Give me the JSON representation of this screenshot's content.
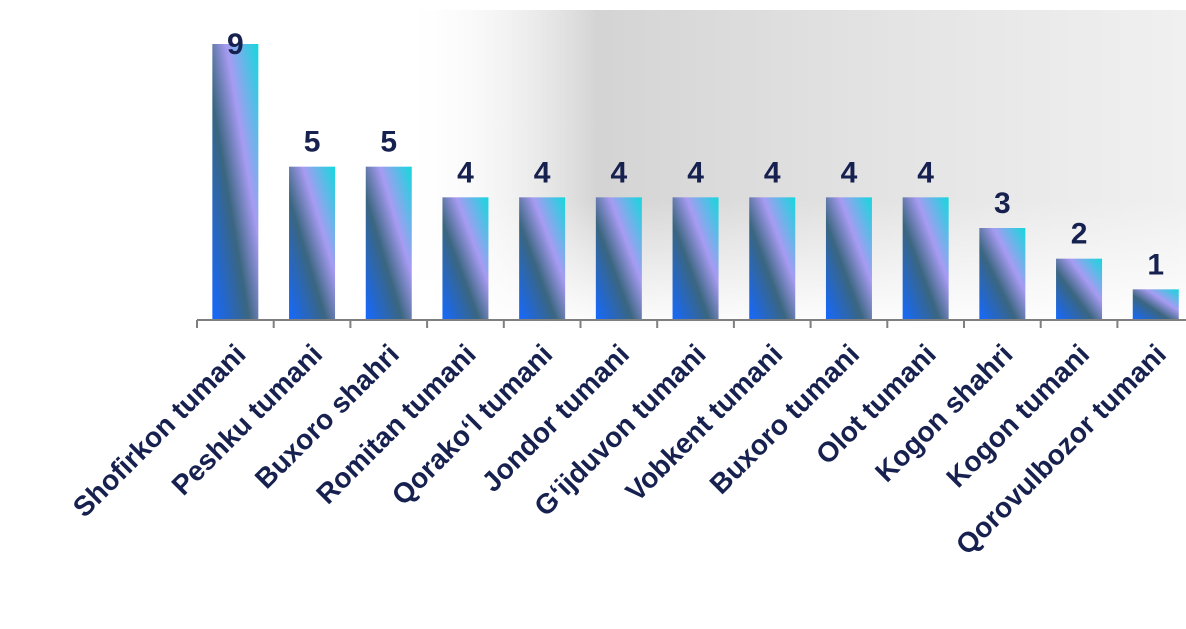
{
  "chart_data": {
    "type": "bar",
    "categories": [
      "Shofirkon tumani",
      "Peshku tumani",
      "Buxoro shahri",
      "Romitan tumani",
      "Qorako‘l tumani",
      "Jondor tumani",
      "G‘ijduvon tumani",
      "Vobkent tumani",
      "Buxoro tumani",
      "Olot tumani",
      "Kogon shahri",
      "Kogon tumani",
      "Qorovulbozor tumani"
    ],
    "values": [
      9,
      5,
      5,
      4,
      4,
      4,
      4,
      4,
      4,
      4,
      3,
      2,
      1
    ],
    "ylim": [
      0,
      9
    ],
    "grid": false,
    "legend": "none",
    "colors": {
      "bar_top": "#14d8dd",
      "bar_mid": "#a79bf2",
      "bar_dark": "#3a6680",
      "bar_bottom": "#1568ff",
      "label": "#17214f",
      "axis": "#7f7f7f"
    }
  }
}
